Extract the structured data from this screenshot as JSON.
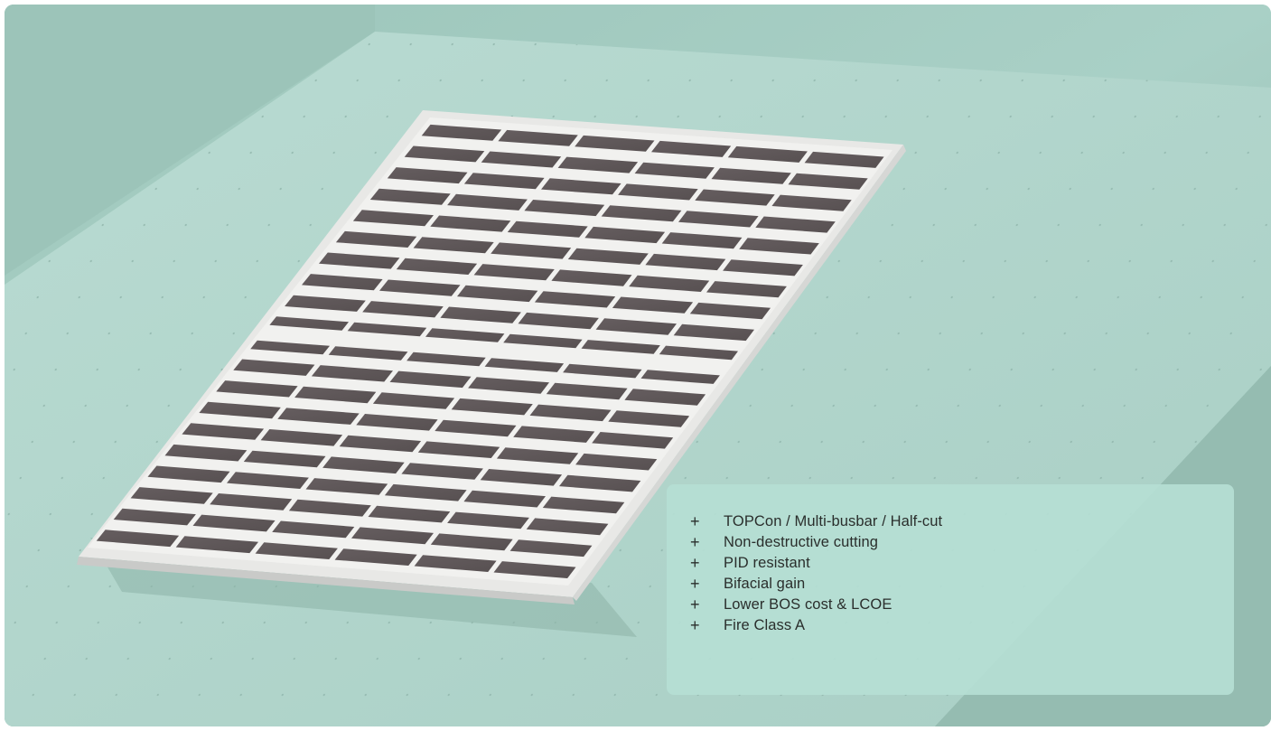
{
  "hero": {
    "image_subject": "solar-panel",
    "colors": {
      "background": "#a7cec4",
      "platform": "#b6d9d0",
      "panel_frame": "#e6e6e4",
      "cell": "#5f5759",
      "card": "#b5ded4",
      "text": "#2a2e2c"
    }
  },
  "features": {
    "bullet_symbol": "+",
    "items": [
      {
        "label": "TOPCon / Multi-busbar / Half-cut"
      },
      {
        "label": "Non-destructive cutting"
      },
      {
        "label": "PID resistant"
      },
      {
        "label": "Bifacial gain"
      },
      {
        "label": "Lower BOS cost & LCOE"
      },
      {
        "label": "Fire Class A"
      }
    ]
  }
}
